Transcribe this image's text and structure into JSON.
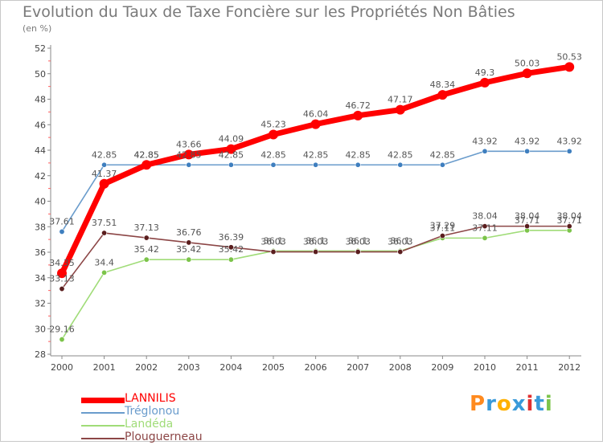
{
  "header": {
    "title": "Evolution du Taux de Taxe Foncière sur les Propriétés Non Bâties",
    "subtitle": "(en %)"
  },
  "chart_data": {
    "type": "line",
    "title": "Evolution du Taux de Taxe Foncière sur les Propriétés Non Bâties",
    "ylabel": "(en %)",
    "xlabel": "",
    "categories": [
      "2000",
      "2001",
      "2002",
      "2003",
      "2004",
      "2005",
      "2006",
      "2007",
      "2008",
      "2009",
      "2010",
      "2011",
      "2012"
    ],
    "ylim": [
      28,
      52
    ],
    "yticks": [
      28,
      30,
      32,
      34,
      36,
      38,
      40,
      42,
      44,
      46,
      48,
      50,
      52
    ],
    "grid": false,
    "legend_position": "bottom-left",
    "series": [
      {
        "name": "Tréglonou",
        "color": "#6a9ccc",
        "point_color": "#3f7fbf",
        "values": [
          37.61,
          42.85,
          42.85,
          42.85,
          42.85,
          42.85,
          42.85,
          42.85,
          42.85,
          42.85,
          43.92,
          43.92,
          43.92
        ],
        "labels": [
          "37.61",
          "42.85",
          "42.85",
          "42.85",
          "42.85",
          "42.85",
          "42.85",
          "42.85",
          "42.85",
          "42.85",
          "43.92",
          "43.92",
          "43.92"
        ]
      },
      {
        "name": "Landéda",
        "color": "#a0dc78",
        "point_color": "#7cc44a",
        "values": [
          29.16,
          34.4,
          35.42,
          35.42,
          35.42,
          36.1,
          36.1,
          36.1,
          36.1,
          37.11,
          37.11,
          37.71,
          37.71
        ],
        "labels": [
          "29.16",
          "34.4",
          "35.42",
          "35.42",
          "35.42",
          "36.1",
          "36.1",
          "36.1",
          "36.1",
          "37.11",
          "37.11",
          "37.71",
          "37.71"
        ]
      },
      {
        "name": "Plouguerneau",
        "color": "#8c4646",
        "point_color": "#5a1e1e",
        "values": [
          33.13,
          37.51,
          37.13,
          36.76,
          36.39,
          36.03,
          36.03,
          36.03,
          36.03,
          37.29,
          38.04,
          38.04,
          38.04
        ],
        "labels": [
          "33.13",
          "37.51",
          "37.13",
          "36.76",
          "36.39",
          "36.03",
          "36.03",
          "36.03",
          "36.03",
          "37.29",
          "38.04",
          "38.04",
          "38.04"
        ]
      },
      {
        "name": "LANNILIS",
        "color": "#ff0000",
        "point_color": "#ff0000",
        "values": [
          34.35,
          41.37,
          42.85,
          43.66,
          44.09,
          45.23,
          46.04,
          46.72,
          47.17,
          48.34,
          49.3,
          50.03,
          50.53
        ],
        "labels": [
          "34.35",
          "41.37",
          "42.85",
          "43.66",
          "44.09",
          "45.23",
          "46.04",
          "46.72",
          "47.17",
          "48.34",
          "49.3",
          "50.03",
          "50.53"
        ]
      }
    ]
  },
  "legend": {
    "items": [
      {
        "label": "LANNILIS",
        "color": "#ff0000",
        "width": 7
      },
      {
        "label": "Tréglonou",
        "color": "#6a9ccc",
        "width": 2
      },
      {
        "label": "Landéda",
        "color": "#a0dc78",
        "width": 2
      },
      {
        "label": "Plouguerneau",
        "color": "#8c4646",
        "width": 2
      }
    ]
  },
  "branding": {
    "logo_text": "Proxiti",
    "colors": [
      "#ff8a1e",
      "#3a9ad9",
      "#ffb000",
      "#3a9ad9",
      "#e03030",
      "#3a9ad9",
      "#7cc44a"
    ]
  }
}
